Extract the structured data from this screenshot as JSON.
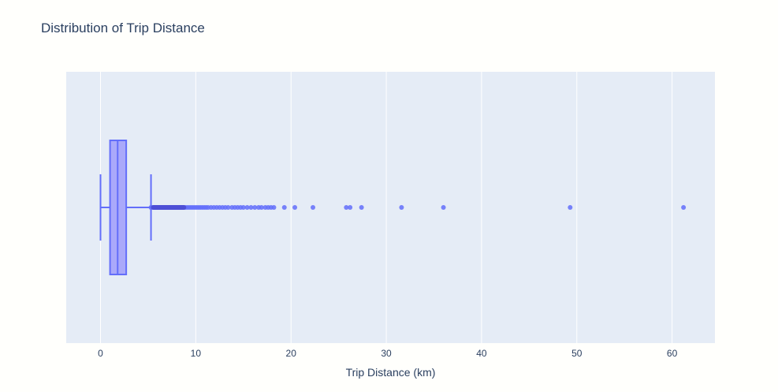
{
  "chart_data": {
    "type": "box",
    "title": "Distribution of Trip Distance",
    "xlabel": "Trip Distance (km)",
    "ylabel": "",
    "xlim": [
      -3.6,
      64.5
    ],
    "xticks": [
      0,
      10,
      20,
      30,
      40,
      50,
      60
    ],
    "xtick_labels": [
      "0",
      "10",
      "20",
      "30",
      "40",
      "50",
      "60"
    ],
    "grid": true,
    "orientation": "horizontal",
    "box": {
      "min": 0.0,
      "q1": 1.0,
      "median": 1.8,
      "q3": 2.7,
      "upper_fence": 5.3
    },
    "outliers": [
      5.3,
      5.5,
      5.7,
      5.9,
      6.1,
      6.3,
      6.5,
      6.7,
      6.9,
      7.1,
      7.3,
      7.5,
      7.7,
      7.9,
      8.1,
      8.3,
      8.5,
      8.7,
      8.9,
      9.1,
      9.3,
      9.5,
      9.7,
      9.9,
      10.1,
      10.3,
      10.5,
      10.7,
      10.9,
      11.1,
      11.3,
      11.6,
      11.9,
      12.2,
      12.5,
      12.8,
      13.1,
      13.4,
      13.8,
      14.1,
      14.4,
      14.7,
      15.0,
      15.4,
      15.8,
      16.2,
      16.6,
      16.9,
      17.3,
      17.6,
      17.9,
      18.2,
      19.3,
      20.4,
      22.3,
      25.8,
      26.2,
      27.4,
      31.6,
      36.0,
      49.3,
      61.2
    ],
    "colors": {
      "box_fill": "#aaa9fa",
      "box_line": "#636efa",
      "point": "#636efa",
      "plot_bg": "#e5ecf6",
      "grid": "#ffffff",
      "text": "#2a3f5f"
    }
  }
}
